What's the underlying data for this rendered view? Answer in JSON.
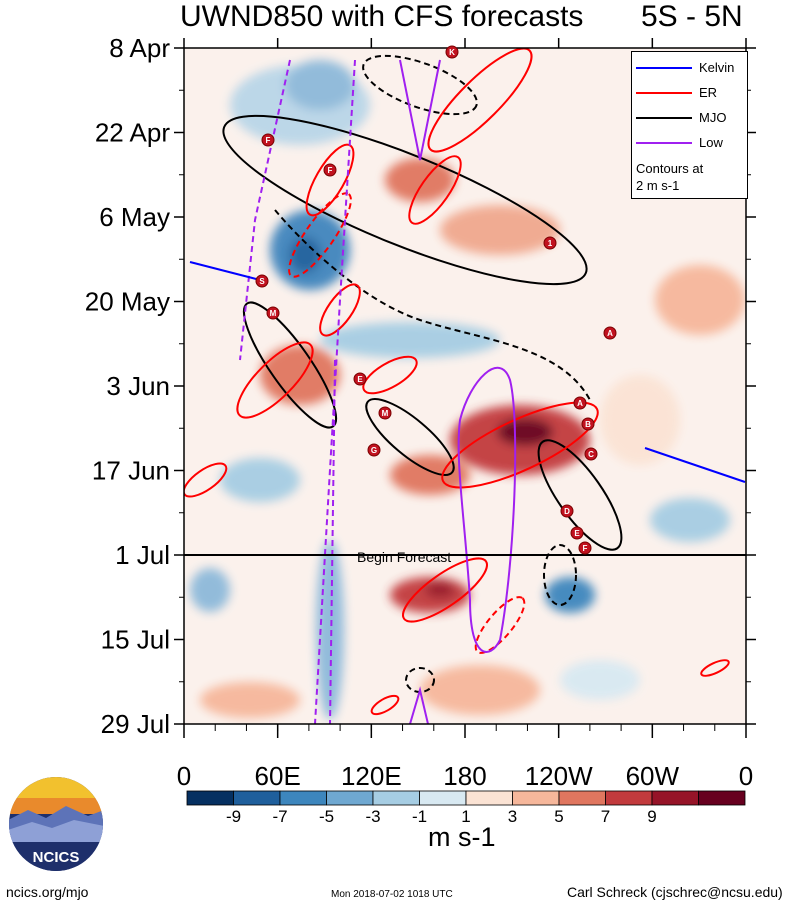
{
  "title": "UWND850 with CFS forecasts",
  "region": "5S - 5N",
  "y_labels": [
    "8 Apr",
    "22 Apr",
    "6 May",
    "20 May",
    "3 Jun",
    "17 Jun",
    "1 Jul",
    "15 Jul",
    "29 Jul"
  ],
  "x_labels": [
    "0",
    "60E",
    "120E",
    "180",
    "120W",
    "60W",
    "0"
  ],
  "colorbar": {
    "labels": [
      "-9",
      "-7",
      "-5",
      "-3",
      "-1",
      "1",
      "3",
      "5",
      "7",
      "9"
    ],
    "colors": [
      "#053061",
      "#1f5f9c",
      "#3d86bd",
      "#6fa8d1",
      "#a6cde3",
      "#d8e9f2",
      "#fbe3d4",
      "#f6b79b",
      "#e0765f",
      "#c23a3d",
      "#961428",
      "#67001f"
    ]
  },
  "units": "m s-1",
  "legend": {
    "items": [
      {
        "label": "Kelvin",
        "color": "#0000ff"
      },
      {
        "label": "ER",
        "color": "#ff0000"
      },
      {
        "label": "MJO",
        "color": "#000000"
      },
      {
        "label": "Low",
        "color": "#a020f0"
      }
    ],
    "note_line1": "Contours at",
    "note_line2": "2 m s-1"
  },
  "forecast_label": "Begin Forecast",
  "storm_markers": [
    "K",
    "F",
    "F",
    "1",
    "S",
    "M",
    "A",
    "E",
    "M",
    "A",
    "B",
    "C",
    "G",
    "D",
    "E",
    "F"
  ],
  "footer": {
    "left": "ncics.org/mjo",
    "middle": "Mon 2018-07-02 1018 UTC",
    "right": "Carl Schreck (cjschrec@ncsu.edu)"
  },
  "logo_text": "NCICS",
  "chart_data": {
    "type": "heatmap",
    "title": "UWND850 with CFS forecasts",
    "subtitle": "5S - 5N",
    "xlabel": "",
    "ylabel": "",
    "x_ticks": [
      "0",
      "60E",
      "120E",
      "180",
      "120W",
      "60W",
      "0"
    ],
    "y_ticks": [
      "8 Apr",
      "22 Apr",
      "6 May",
      "20 May",
      "3 Jun",
      "17 Jun",
      "1 Jul",
      "15 Jul",
      "29 Jul"
    ],
    "color_levels": [
      -9,
      -7,
      -5,
      -3,
      -1,
      1,
      3,
      5,
      7,
      9
    ],
    "units": "m s-1",
    "forecast_start": "1 Jul",
    "legend": [
      "Kelvin",
      "ER",
      "MJO",
      "Low"
    ],
    "legend_position": "top-right",
    "colors": {
      "Kelvin": "#0000ff",
      "ER": "#ff0000",
      "MJO": "#000000",
      "Low": "#a020f0"
    }
  }
}
